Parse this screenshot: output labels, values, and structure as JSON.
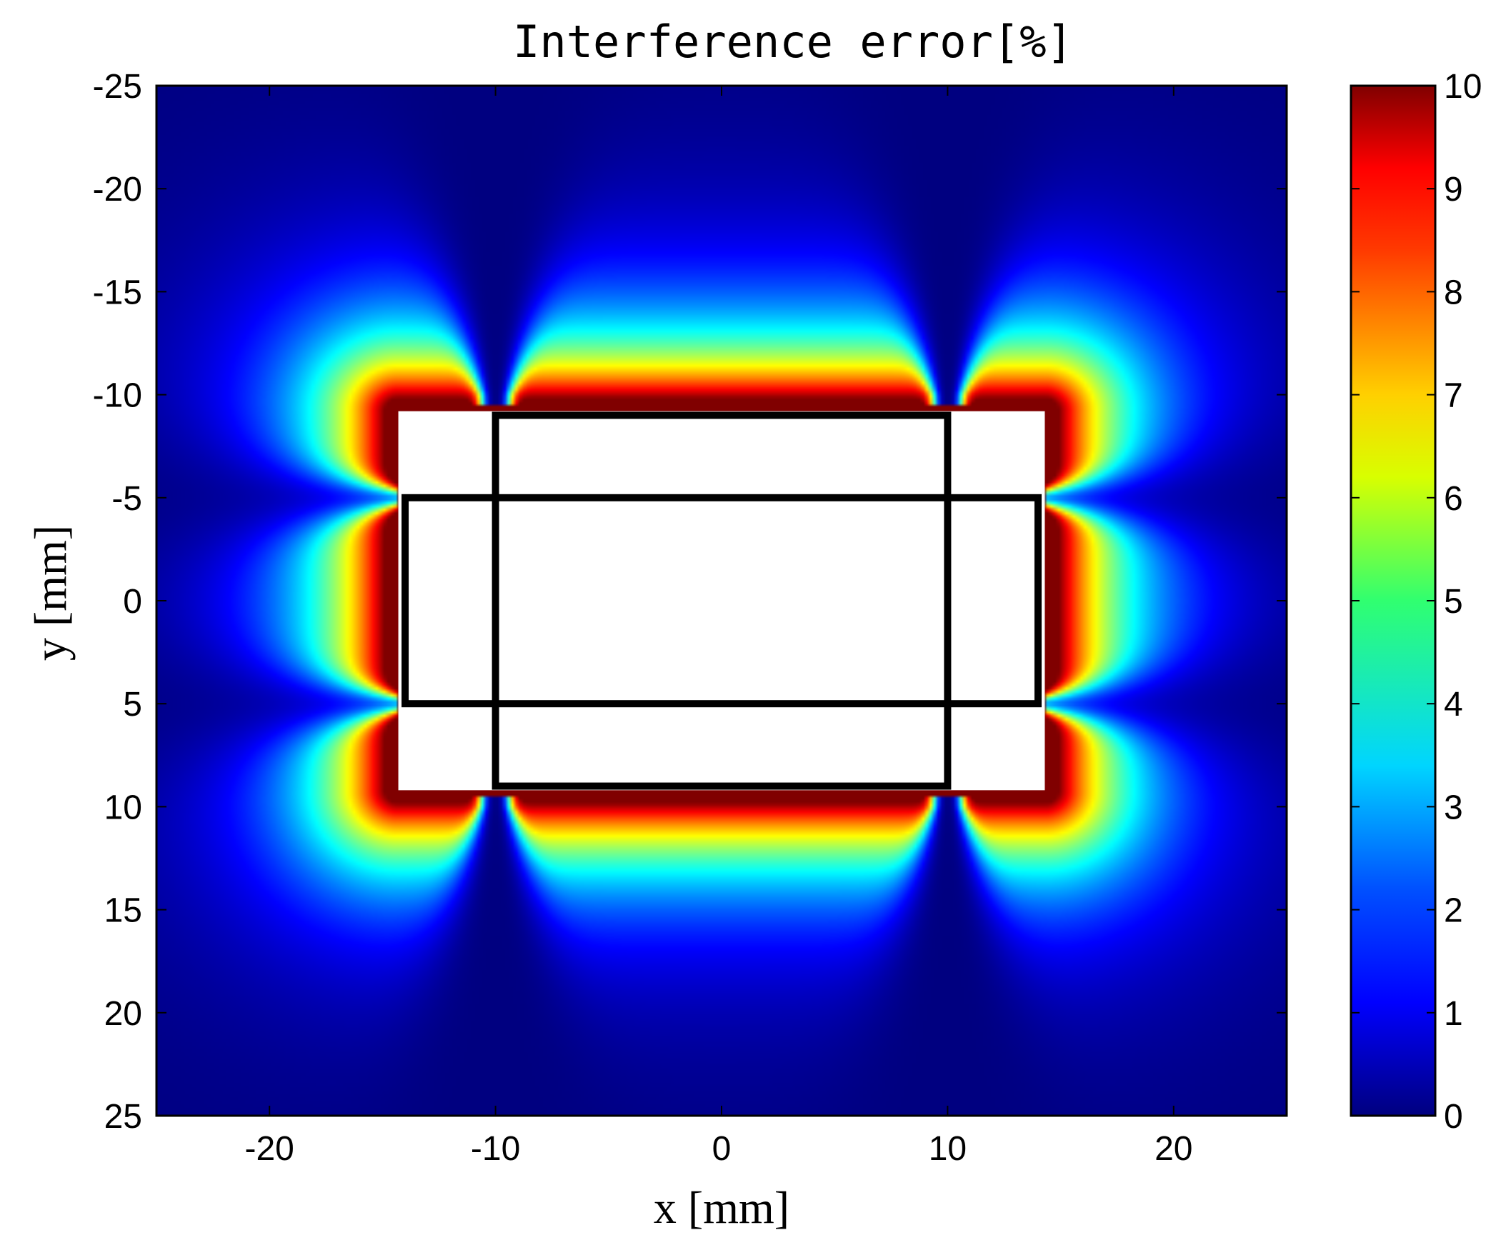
{
  "chart_data": {
    "type": "heatmap",
    "title": "Interference error[%]",
    "xlabel": "x [mm]",
    "ylabel": "y [mm]",
    "xlim": [
      -25,
      25
    ],
    "ylim": [
      -25,
      25
    ],
    "y_inverted": true,
    "x_ticks": [
      -20,
      -10,
      0,
      10,
      20
    ],
    "y_ticks": [
      -25,
      -20,
      -15,
      -10,
      -5,
      0,
      5,
      10,
      15,
      20,
      25
    ],
    "colorbar": {
      "min": 0,
      "max": 10,
      "ticks": [
        0,
        1,
        2,
        3,
        4,
        5,
        6,
        7,
        8,
        9,
        10
      ],
      "colormap": "jet"
    },
    "masked_region": {
      "x": [
        -14.3,
        14.3
      ],
      "y": [
        -9.2,
        9.2
      ]
    },
    "outlines": [
      {
        "x": [
          -10,
          10
        ],
        "y": [
          -9,
          9
        ]
      },
      {
        "x": [
          -14,
          14
        ],
        "y": [
          -5,
          5
        ]
      }
    ],
    "grid": false
  }
}
